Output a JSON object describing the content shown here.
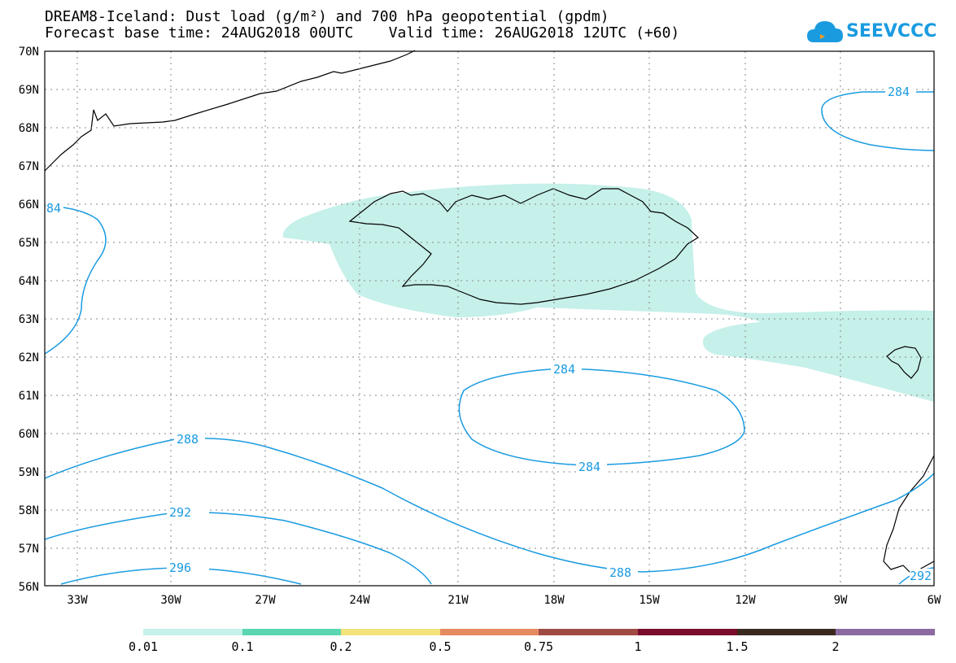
{
  "title": {
    "line1": "DREAM8-Iceland: Dust load (g/m²) and 700 hPa geopotential (gpdm)",
    "line2": "Forecast base time: 24AUG2018 00UTC    Valid time: 26AUG2018 12UTC (+60)"
  },
  "logo": {
    "text": "SEEVCCC",
    "icon": "cloud-icon",
    "color": "#1a9be0"
  },
  "axes": {
    "lat_labels": [
      "70N",
      "69N",
      "68N",
      "67N",
      "66N",
      "65N",
      "64N",
      "63N",
      "62N",
      "61N",
      "60N",
      "59N",
      "58N",
      "57N",
      "56N"
    ],
    "lon_labels": [
      "33W",
      "30W",
      "27W",
      "24W",
      "21W",
      "18W",
      "15W",
      "12W",
      "9W",
      "6W"
    ]
  },
  "contours": {
    "color": "#1a9be0",
    "labels": [
      "284",
      "84",
      "284",
      "284",
      "288",
      "292",
      "296",
      "288",
      "292"
    ]
  },
  "colorbar": {
    "labels": [
      "0.01",
      "0.1",
      "0.2",
      "0.5",
      "0.75",
      "1",
      "1.5",
      "2"
    ],
    "colors": [
      "#c6f0ea",
      "#5ad6b0",
      "#f4e27a",
      "#e68a62",
      "#a04a44",
      "#7a0d2e",
      "#3a2a1e",
      "#8a6aa0"
    ]
  },
  "dust_color": "#c6f0ea"
}
